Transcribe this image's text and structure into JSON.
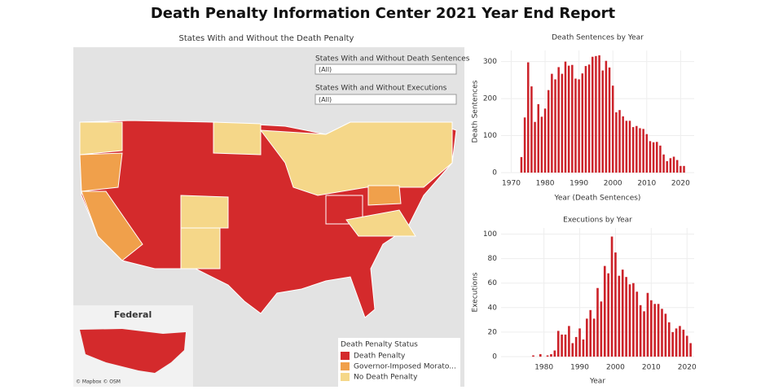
{
  "title": "Death Penalty Information Center  2021 Year End Report",
  "map": {
    "title": "States With and Without the Death Penalty",
    "filters": [
      {
        "label": "States With and Without Death Sentences",
        "value": "(All)"
      },
      {
        "label": "States With and Without Executions",
        "value": "(All)"
      }
    ],
    "inset_title": "Federal",
    "attribution": "© Mapbox © OSM",
    "legend": {
      "title": "Death Penalty Status",
      "items": [
        {
          "label": "Death Penalty",
          "color": "#d42a2c"
        },
        {
          "label": "Governor-Imposed Morato...",
          "color": "#f0a04b"
        },
        {
          "label": "No Death Penalty",
          "color": "#f5d789"
        }
      ]
    }
  },
  "chart_data": [
    {
      "type": "bar",
      "title": "Death Sentences by Year",
      "x_label": "Year (Death Sentences)",
      "y_label": "Death Sentences",
      "color": "#cc2229",
      "grid": true,
      "x": [
        1973,
        1974,
        1975,
        1976,
        1977,
        1978,
        1979,
        1980,
        1981,
        1982,
        1983,
        1984,
        1985,
        1986,
        1987,
        1988,
        1989,
        1990,
        1991,
        1992,
        1993,
        1994,
        1995,
        1996,
        1997,
        1998,
        1999,
        2000,
        2001,
        2002,
        2003,
        2004,
        2005,
        2006,
        2007,
        2008,
        2009,
        2010,
        2011,
        2012,
        2013,
        2014,
        2015,
        2016,
        2017,
        2018,
        2019,
        2020,
        2021
      ],
      "values": [
        42,
        149,
        298,
        233,
        137,
        185,
        151,
        173,
        223,
        267,
        252,
        285,
        267,
        300,
        289,
        291,
        254,
        252,
        268,
        288,
        292,
        313,
        315,
        317,
        276,
        302,
        284,
        235,
        163,
        169,
        152,
        140,
        140,
        123,
        126,
        120,
        118,
        104,
        85,
        82,
        83,
        73,
        49,
        31,
        39,
        43,
        34,
        18,
        18
      ],
      "xlim": [
        1967,
        2024
      ],
      "xticks": [
        1970,
        1980,
        1990,
        2000,
        2010,
        2020
      ],
      "ylim": [
        0,
        330
      ],
      "yticks": [
        0,
        100,
        200,
        300
      ]
    },
    {
      "type": "bar",
      "title": "Executions by Year",
      "x_label": "Year",
      "y_label": "Executions",
      "color": "#cc2229",
      "grid": true,
      "x": [
        1977,
        1978,
        1979,
        1980,
        1981,
        1982,
        1983,
        1984,
        1985,
        1986,
        1987,
        1988,
        1989,
        1990,
        1991,
        1992,
        1993,
        1994,
        1995,
        1996,
        1997,
        1998,
        1999,
        2000,
        2001,
        2002,
        2003,
        2004,
        2005,
        2006,
        2007,
        2008,
        2009,
        2010,
        2011,
        2012,
        2013,
        2014,
        2015,
        2016,
        2017,
        2018,
        2019,
        2020,
        2021
      ],
      "values": [
        1,
        0,
        2,
        0,
        1,
        2,
        5,
        21,
        18,
        18,
        25,
        11,
        16,
        23,
        14,
        31,
        38,
        31,
        56,
        45,
        74,
        68,
        98,
        85,
        66,
        71,
        65,
        59,
        60,
        53,
        42,
        37,
        52,
        46,
        43,
        43,
        39,
        35,
        28,
        20,
        23,
        25,
        22,
        17,
        11
      ],
      "xlim": [
        1968,
        2022
      ],
      "xticks": [
        1980,
        1990,
        2000,
        2010,
        2020
      ],
      "ylim": [
        0,
        105
      ],
      "yticks": [
        0,
        20,
        40,
        60,
        80,
        100
      ]
    }
  ]
}
